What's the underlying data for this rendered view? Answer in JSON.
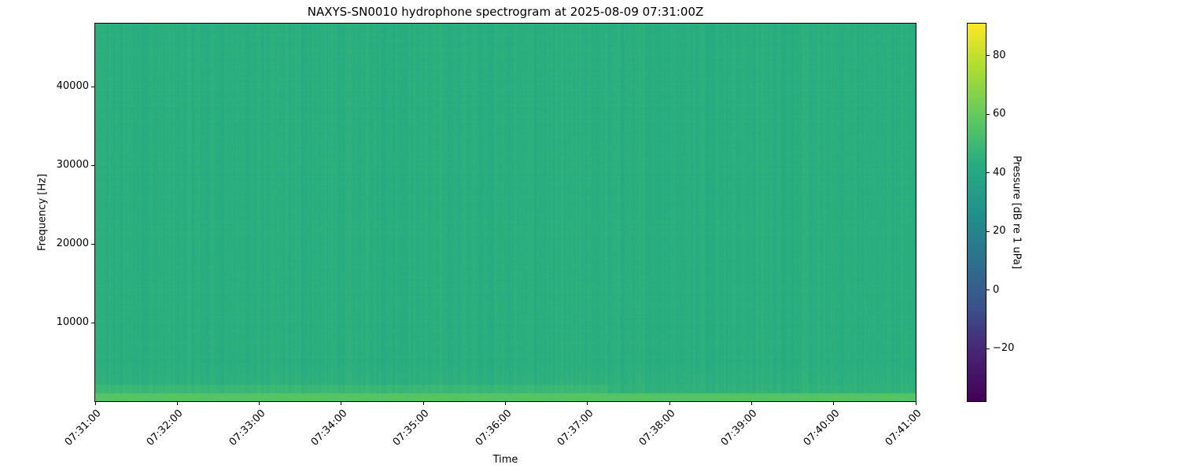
{
  "chart_data": {
    "type": "heatmap",
    "title": "NAXYS-SN0010 hydrophone spectrogram at 2025-08-09 07:31:00Z",
    "xlabel": "Time",
    "ylabel": "Frequency [Hz]",
    "x_ticks": [
      "07:31:00",
      "07:32:00",
      "07:33:00",
      "07:34:00",
      "07:35:00",
      "07:36:00",
      "07:37:00",
      "07:38:00",
      "07:39:00",
      "07:40:00",
      "07:41:00"
    ],
    "xlim": [
      "07:31:00",
      "07:41:00"
    ],
    "y_ticks": [
      10000,
      20000,
      30000,
      40000
    ],
    "ylim": [
      0,
      48000
    ],
    "colorbar": {
      "label": "Pressure [dB re 1 uPa]",
      "colormap": "viridis",
      "range": [
        -38,
        91
      ],
      "ticks": [
        -20,
        0,
        20,
        40,
        60,
        80
      ],
      "tick_labels": [
        "−20",
        "0",
        "20",
        "40",
        "60",
        "80"
      ]
    },
    "typical_level_db": 44,
    "low_frequency_band": {
      "freq_range_hz": [
        0,
        1000
      ],
      "level_db": 56
    },
    "low_frequency_elevated_until": "07:37:15",
    "grid": false
  }
}
